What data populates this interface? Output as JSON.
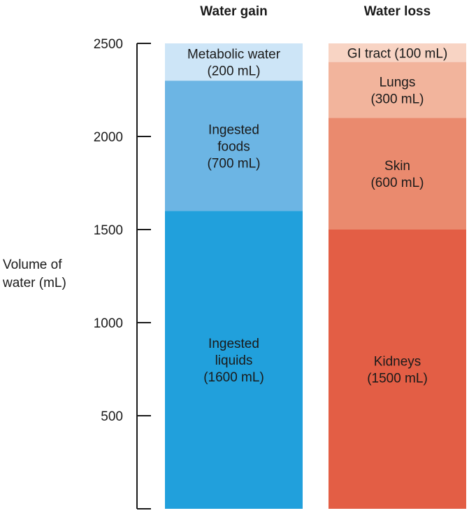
{
  "chart_data": {
    "type": "bar",
    "stacked": true,
    "ylabel": "Volume of water (mL)",
    "ylabel_lines": [
      "Volume of",
      "water (mL)"
    ],
    "ylim": [
      0,
      2500
    ],
    "yticks": [
      500,
      1000,
      1500,
      2000,
      2500
    ],
    "grid": false,
    "columns": [
      {
        "title": "Water gain",
        "segments": [
          {
            "name": "Ingested liquids",
            "value": 1600,
            "label_lines": [
              "Ingested",
              "liquids",
              "(1600 mL)"
            ],
            "color": "#21a0dc"
          },
          {
            "name": "Ingested foods",
            "value": 700,
            "label_lines": [
              "Ingested",
              "foods",
              "(700 mL)"
            ],
            "color": "#6cb5e4"
          },
          {
            "name": "Metabolic water",
            "value": 200,
            "label_lines": [
              "Metabolic water",
              "(200 mL)"
            ],
            "color": "#cde5f7"
          }
        ]
      },
      {
        "title": "Water loss",
        "segments": [
          {
            "name": "Kidneys",
            "value": 1500,
            "label_lines": [
              "Kidneys",
              "(1500 mL)"
            ],
            "color": "#e35e45"
          },
          {
            "name": "Skin",
            "value": 600,
            "label_lines": [
              "Skin",
              "(600 mL)"
            ],
            "color": "#ea8a6e"
          },
          {
            "name": "Lungs",
            "value": 300,
            "label_lines": [
              "Lungs",
              "(300 mL)"
            ],
            "color": "#f2b49c"
          },
          {
            "name": "GI tract",
            "value": 100,
            "label_lines": [
              "GI tract (100 mL)"
            ],
            "color": "#f8d4c4"
          }
        ]
      }
    ]
  }
}
